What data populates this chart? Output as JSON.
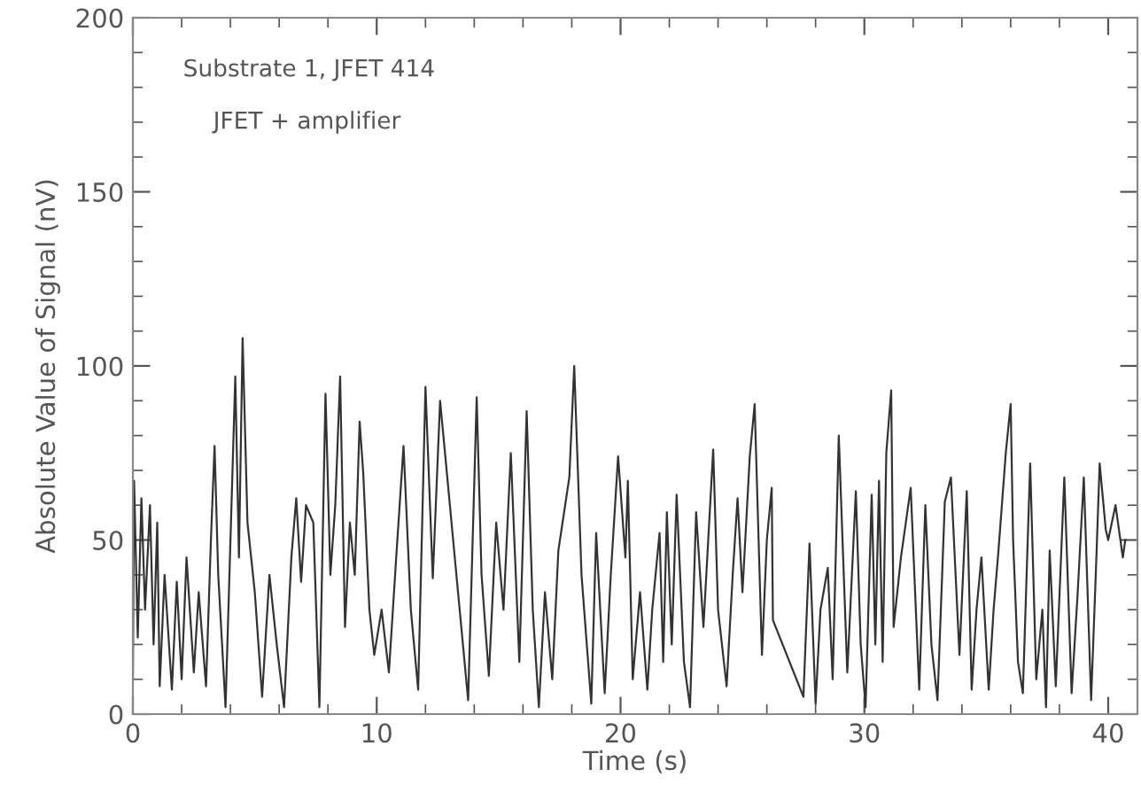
{
  "chart_data": {
    "type": "line",
    "xlabel": "Time (s)",
    "ylabel": "Absolute Value of Signal (nV)",
    "annotations": [
      "Substrate 1, JFET 414",
      "JFET + amplifier"
    ],
    "xlim": [
      0,
      41.2
    ],
    "xticks": [
      0,
      10,
      20,
      30,
      40
    ],
    "ylim": [
      0,
      200
    ],
    "yticks": [
      0,
      50,
      100,
      150,
      200
    ],
    "grid": false,
    "legend": false,
    "marker": "none",
    "line_style": "solid",
    "series": [
      {
        "color": "#333333",
        "x": [
          0,
          0.05,
          0.2,
          0.35,
          0.5,
          0.7,
          0.85,
          1.0,
          1.1,
          1.3,
          1.6,
          1.8,
          2.0,
          2.2,
          2.5,
          2.7,
          3.0,
          3.2,
          3.35,
          3.5,
          3.8,
          4.2,
          4.35,
          4.5,
          4.7,
          5.0,
          5.3,
          5.6,
          5.9,
          6.2,
          6.5,
          6.7,
          6.9,
          7.1,
          7.4,
          7.65,
          7.9,
          8.1,
          8.3,
          8.5,
          8.7,
          8.9,
          9.1,
          9.3,
          9.45,
          9.7,
          9.9,
          10.2,
          10.5,
          10.8,
          11.1,
          11.4,
          11.7,
          12.0,
          12.3,
          12.6,
          13.75,
          14.1,
          14.3,
          14.6,
          14.9,
          15.2,
          15.5,
          15.85,
          16.15,
          16.4,
          16.65,
          16.9,
          17.2,
          17.45,
          17.9,
          18.1,
          18.4,
          18.8,
          19.0,
          19.35,
          19.6,
          19.9,
          20.2,
          20.3,
          20.5,
          20.8,
          21.1,
          21.3,
          21.6,
          21.75,
          21.9,
          22.1,
          22.3,
          22.6,
          22.85,
          23.1,
          23.4,
          23.8,
          24.0,
          24.35,
          24.6,
          24.8,
          25.0,
          25.3,
          25.5,
          25.8,
          26.0,
          26.2,
          26.25,
          27.5,
          27.75,
          28.0,
          28.2,
          28.5,
          28.7,
          28.95,
          29.3,
          29.65,
          29.85,
          30.05,
          30.3,
          30.45,
          30.6,
          30.75,
          30.9,
          31.1,
          31.2,
          31.5,
          31.9,
          32.25,
          32.5,
          32.75,
          33.0,
          33.3,
          33.55,
          33.9,
          34.2,
          34.4,
          34.6,
          34.8,
          35.1,
          35.3,
          35.5,
          35.8,
          36.0,
          36.1,
          36.3,
          36.5,
          36.8,
          37.05,
          37.3,
          37.45,
          37.6,
          37.85,
          38.2,
          38.5,
          38.75,
          39.0,
          39.3,
          39.5,
          39.65,
          39.9,
          40.0,
          40.3,
          40.6,
          40.7
        ],
        "values": [
          10,
          67,
          22,
          62,
          30,
          60,
          20,
          55,
          8,
          40,
          7,
          38,
          10,
          45,
          12,
          35,
          8,
          50,
          77,
          40,
          2,
          97,
          45,
          108,
          55,
          35,
          5,
          40,
          20,
          2,
          45,
          62,
          38,
          60,
          55,
          2,
          92,
          40,
          60,
          97,
          25,
          55,
          40,
          84,
          69,
          30,
          17,
          30,
          12,
          45,
          77,
          30,
          7,
          94,
          39,
          90,
          4,
          91,
          40,
          11,
          55,
          30,
          75,
          15,
          87,
          30,
          2,
          35,
          10,
          47,
          68,
          100,
          40,
          3,
          52,
          6,
          40,
          74,
          45,
          67,
          10,
          35,
          7,
          30,
          52,
          15,
          58,
          20,
          63,
          15,
          2,
          58,
          25,
          76,
          30,
          8,
          40,
          62,
          35,
          74,
          89,
          17,
          50,
          65,
          27,
          5,
          49,
          3,
          30,
          42,
          10,
          80,
          12,
          64,
          20,
          2,
          63,
          20,
          67,
          15,
          75,
          93,
          25,
          45,
          65,
          7,
          60,
          20,
          4,
          61,
          68,
          17,
          64,
          7,
          30,
          45,
          7,
          30,
          47,
          75,
          89,
          50,
          15,
          6,
          72,
          10,
          30,
          2,
          47,
          8,
          68,
          6,
          35,
          68,
          4,
          42,
          72,
          53,
          50,
          60,
          45,
          50
        ]
      }
    ]
  }
}
